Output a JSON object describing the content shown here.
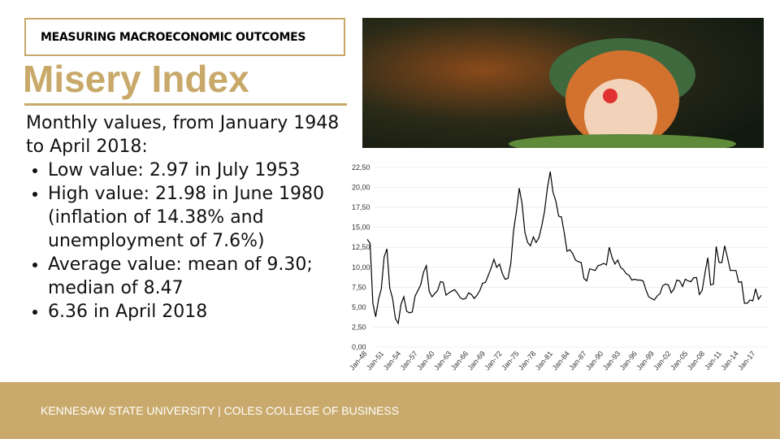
{
  "header": {
    "label": "MEASURING MACROECONOMIC OUTCOMES"
  },
  "title": "Misery Index",
  "body": {
    "intro": "Monthly values, from January 1948 to April 2018:",
    "bullets": [
      "Low value: 2.97 in July 1953",
      "High value: 21.98 in June 1980 (inflation of 14.38% and unemployment of 7.6%)",
      "Average value: mean of 9.30; median of 8.47",
      "6.36 in April 2018"
    ]
  },
  "footer": "KENNESAW STATE UNIVERSITY | COLES COLLEGE OF BUSINESS",
  "chart_data": {
    "type": "line",
    "color": "#000000",
    "grid": true,
    "ylim": [
      0,
      22.5
    ],
    "yticks": [
      {
        "value": 0,
        "label": "0,00"
      },
      {
        "value": 2.5,
        "label": "2,50"
      },
      {
        "value": 5,
        "label": "5,00"
      },
      {
        "value": 7.5,
        "label": "7,50"
      },
      {
        "value": 10,
        "label": "10,00"
      },
      {
        "value": 12.5,
        "label": "12,50"
      },
      {
        "value": 15,
        "label": "15,00"
      },
      {
        "value": 17.5,
        "label": "17,50"
      },
      {
        "value": 20,
        "label": "20,00"
      },
      {
        "value": 22.5,
        "label": "22,50"
      }
    ],
    "categories": [
      "Jan-48",
      null,
      null,
      null,
      null,
      null,
      "Jan-51",
      null,
      null,
      null,
      null,
      null,
      "Jan-54",
      null,
      null,
      null,
      null,
      null,
      "Jan-57",
      null,
      null,
      null,
      null,
      null,
      "Jan-60",
      null,
      null,
      null,
      null,
      null,
      "Jan-63",
      null,
      null,
      null,
      null,
      null,
      "Jan-66",
      null,
      null,
      null,
      null,
      null,
      "Jan-69",
      null,
      null,
      null,
      null,
      null,
      "Jan-72",
      null,
      null,
      null,
      null,
      null,
      "Jan-75",
      null,
      null,
      null,
      null,
      null,
      "Jan-78",
      null,
      null,
      null,
      null,
      null,
      "Jan-81",
      null,
      null,
      null,
      null,
      null,
      "Jan-84",
      null,
      null,
      null,
      null,
      null,
      "Jan-87",
      null,
      null,
      null,
      null,
      null,
      "Jan-90",
      null,
      null,
      null,
      null,
      null,
      "Jan-93",
      null,
      null,
      null,
      null,
      null,
      "Jan-96",
      null,
      null,
      null,
      null,
      null,
      "Jan-99",
      null,
      null,
      null,
      null,
      null,
      "Jan-02",
      null,
      null,
      null,
      null,
      null,
      "Jan-05",
      null,
      null,
      null,
      null,
      null,
      "Jan-08",
      null,
      null,
      null,
      null,
      null,
      "Jan-11",
      null,
      null,
      null,
      null,
      null,
      "Jan-14",
      null,
      null,
      null,
      null,
      null,
      "Jan-17",
      null,
      null
    ],
    "values": [
      13.5,
      13.0,
      5.5,
      3.8,
      6.0,
      7.3,
      11.3,
      12.3,
      7.4,
      6.1,
      3.6,
      2.97,
      5.4,
      6.3,
      4.5,
      4.3,
      4.4,
      6.4,
      7.1,
      7.8,
      9.4,
      10.2,
      7.0,
      6.3,
      6.7,
      7.1,
      8.2,
      8.1,
      6.5,
      6.8,
      7.0,
      7.2,
      6.8,
      6.2,
      6.0,
      6.1,
      6.8,
      6.6,
      6.1,
      6.5,
      7.1,
      8.0,
      8.1,
      9.0,
      9.9,
      11.0,
      10.0,
      10.4,
      9.2,
      8.5,
      8.6,
      10.5,
      14.6,
      17.0,
      19.9,
      18.0,
      14.4,
      13.1,
      12.7,
      13.8,
      13.1,
      13.7,
      15.2,
      17.0,
      19.9,
      21.98,
      19.4,
      18.3,
      16.4,
      16.3,
      14.3,
      12.0,
      12.2,
      11.7,
      10.9,
      10.7,
      10.6,
      8.6,
      8.3,
      9.8,
      9.7,
      9.6,
      10.2,
      10.3,
      10.5,
      10.3,
      12.5,
      11.2,
      10.4,
      10.9,
      10.0,
      9.7,
      9.2,
      9.0,
      8.4,
      8.5,
      8.4,
      8.4,
      8.3,
      7.2,
      6.3,
      6.1,
      5.9,
      6.4,
      6.7,
      7.7,
      7.9,
      7.8,
      6.8,
      7.3,
      8.4,
      8.3,
      7.6,
      8.5,
      8.3,
      8.2,
      8.7,
      8.7,
      6.6,
      7.1,
      9.3,
      11.2,
      7.8,
      7.9,
      12.6,
      10.6,
      10.6,
      12.7,
      11.2,
      9.6,
      9.6,
      9.6,
      8.1,
      8.2,
      5.5,
      5.5,
      5.9,
      5.8,
      7.3,
      6.0,
      6.5
    ]
  }
}
